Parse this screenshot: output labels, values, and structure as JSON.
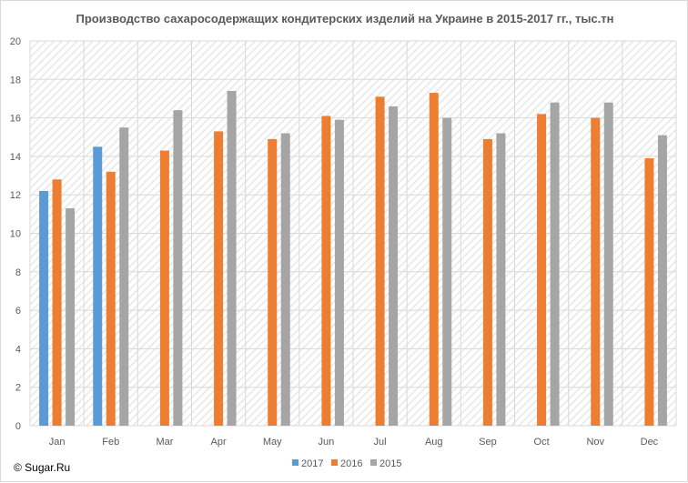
{
  "chart_data": {
    "type": "bar",
    "title": "Производство сахаросодержащих кондитерских изделий на Украине в 2015-2017 гг., тыс.тн",
    "categories": [
      "Jan",
      "Feb",
      "Mar",
      "Apr",
      "May",
      "Jun",
      "Jul",
      "Aug",
      "Sep",
      "Oct",
      "Nov",
      "Dec"
    ],
    "series": [
      {
        "name": "2017",
        "color": "#5b9bd5",
        "values": [
          12.2,
          14.5,
          null,
          null,
          null,
          null,
          null,
          null,
          null,
          null,
          null,
          null
        ]
      },
      {
        "name": "2016",
        "color": "#ed7d31",
        "values": [
          12.8,
          13.2,
          14.3,
          15.3,
          14.9,
          16.1,
          17.1,
          17.3,
          14.9,
          16.2,
          16.0,
          13.9
        ]
      },
      {
        "name": "2015",
        "color": "#a5a5a5",
        "values": [
          11.3,
          15.5,
          16.4,
          17.4,
          15.2,
          15.9,
          16.6,
          16.0,
          15.2,
          16.8,
          16.8,
          15.1
        ]
      }
    ],
    "ylim": [
      0,
      20
    ],
    "yticks": [
      0,
      2,
      4,
      6,
      8,
      10,
      12,
      14,
      16,
      18,
      20
    ],
    "grid": true,
    "legend": "bottom"
  },
  "footer": {
    "copyright": "© Sugar.Ru"
  }
}
